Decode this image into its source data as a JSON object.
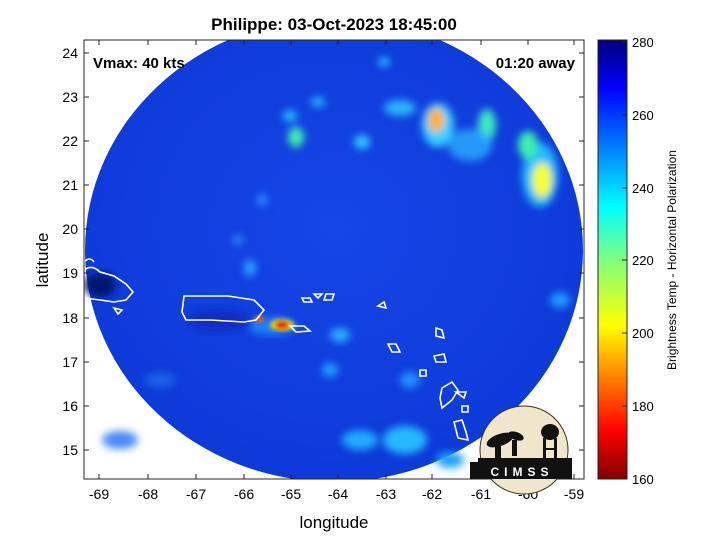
{
  "title": "Philippe: 03-Oct-2023 18:45:00",
  "annotations": {
    "vmax": "Vmax: 40 kts",
    "time_away": "01:20 away"
  },
  "axes": {
    "xlabel": "longitude",
    "ylabel": "latitude",
    "xlim": [
      -69.3,
      -58.8
    ],
    "ylim": [
      14.3,
      24.4
    ],
    "xticks": [
      "-69",
      "-68",
      "-67",
      "-66",
      "-65",
      "-64",
      "-63",
      "-62",
      "-61",
      "-60",
      "-59"
    ],
    "yticks": [
      "15",
      "16",
      "17",
      "18",
      "19",
      "20",
      "21",
      "22",
      "23",
      "24"
    ]
  },
  "colorbar": {
    "label": "Brightness Temp - Horizontal Polarization",
    "range": [
      160,
      280
    ],
    "ticks": [
      "280",
      "260",
      "240",
      "220",
      "200",
      "180",
      "160"
    ],
    "colormap": "jet"
  },
  "logo": {
    "text": "CIMSS"
  },
  "colors": {
    "background_field": "#0f3fe0",
    "coastline": "#ffffff"
  }
}
